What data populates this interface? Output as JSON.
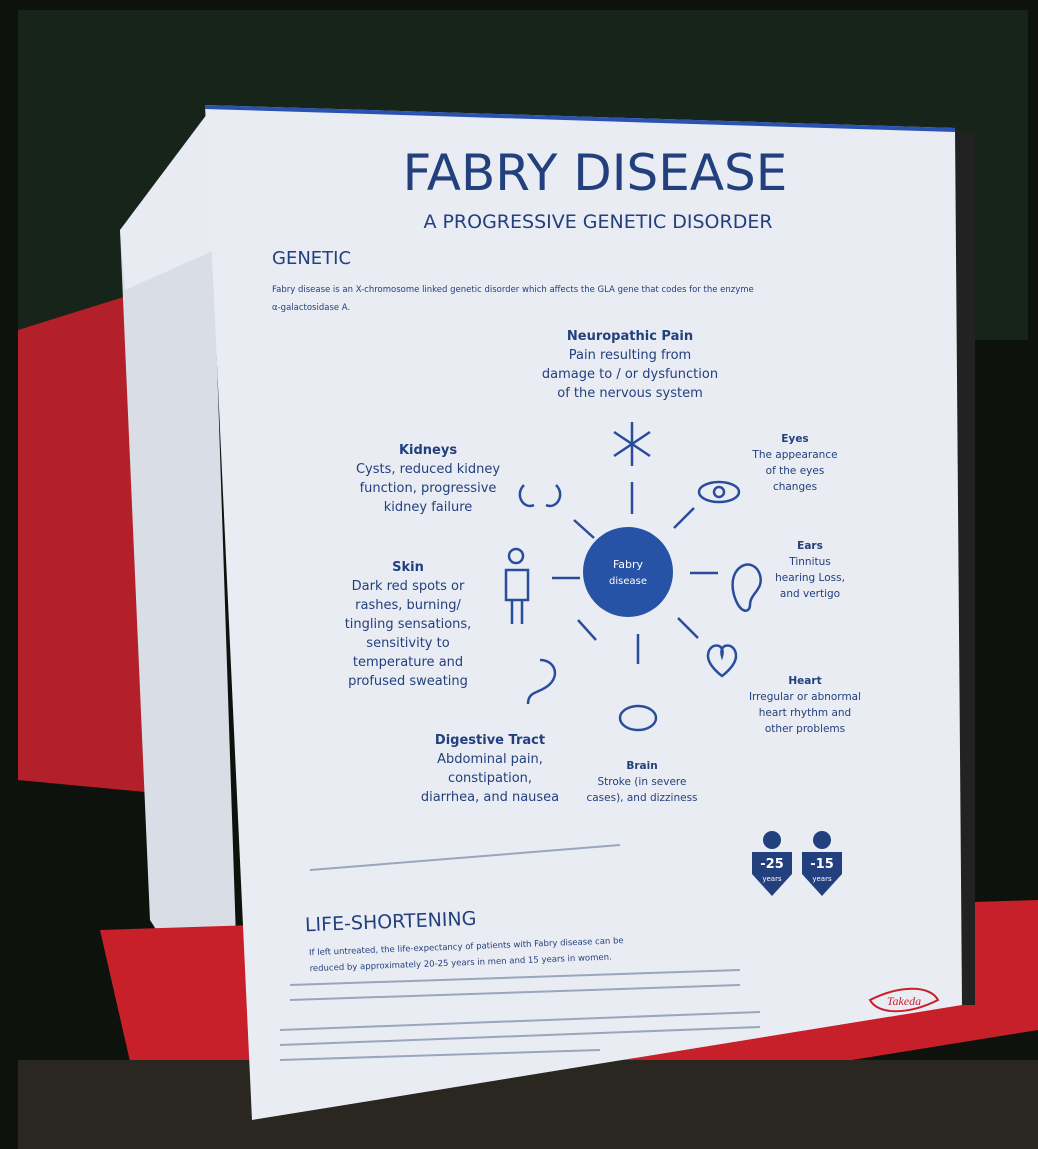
{
  "header": {
    "title": "FABRY DISEASE",
    "subtitle": "A PROGRESSIVE GENETIC DISORDER"
  },
  "genetic": {
    "heading": "GENETIC",
    "lines": [
      "Fabry disease is an X-chromosome linked genetic disorder which affects the GLA gene that codes for the enzyme",
      "α-galactosidase A."
    ]
  },
  "diagram": {
    "center": [
      "Fabry",
      "disease"
    ],
    "nodes": [
      {
        "label": "Neuropathic Pain",
        "lines": [
          "Pain resulting from",
          "damage to / or dysfunction",
          "of the nervous system"
        ]
      },
      {
        "label": "Eyes",
        "lines": [
          "The appearance",
          "of the eyes",
          "changes"
        ]
      },
      {
        "label": "Kidneys",
        "lines": [
          "Cysts, reduced kidney",
          "function, progressive",
          "kidney failure"
        ]
      },
      {
        "label": "Ears",
        "lines": [
          "Tinnitus",
          "hearing Loss,",
          "and vertigo"
        ]
      },
      {
        "label": "Skin",
        "lines": [
          "Dark red spots or",
          "rashes, burning/",
          "tingling sensations,",
          "sensitivity to",
          "temperature and",
          "profused sweating"
        ]
      },
      {
        "label": "Heart",
        "lines": [
          "Irregular or abnormal",
          "heart rhythm and",
          "other problems"
        ]
      },
      {
        "label": "Digestive Tract",
        "lines": [
          "Abdominal pain,",
          "constipation,",
          "diarrhea, and nausea"
        ]
      },
      {
        "label": "Brain",
        "lines": [
          "Stroke (in severe",
          "cases), and dizziness"
        ]
      }
    ]
  },
  "life": {
    "heading": "LIFE-SHORTENING",
    "lines": [
      "If left untreated, the life-expectancy of patients with Fabry disease can be",
      "reduced by approximately 20-25 years in men and 15 years in women."
    ],
    "badges": [
      {
        "value": "-25",
        "unit": "years"
      },
      {
        "value": "-15",
        "unit": "years"
      }
    ]
  },
  "logo": "Takeda"
}
